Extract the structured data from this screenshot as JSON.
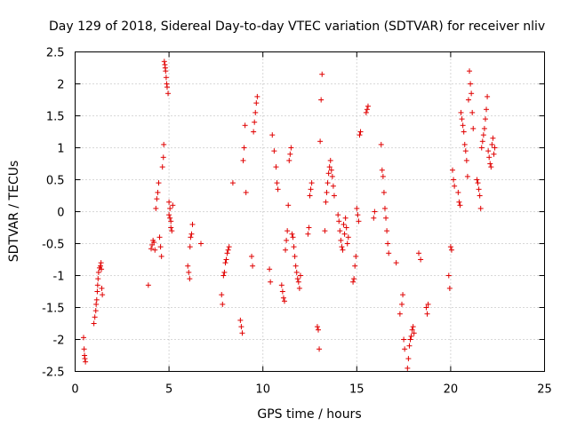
{
  "chart_data": {
    "type": "scatter",
    "title": "Day 129 of 2018, Sidereal Day-to-day VTEC variation (SDTVAR) for receiver nliv",
    "xlabel": "GPS time / hours",
    "ylabel": "SDTVAR / TECUs",
    "xlim": [
      0,
      25
    ],
    "ylim": [
      -2.5,
      2.5
    ],
    "xticks": [
      0,
      5,
      10,
      15,
      20,
      25
    ],
    "yticks": [
      -2.5,
      -2,
      -1.5,
      -1,
      -0.5,
      0,
      0.5,
      1,
      1.5,
      2,
      2.5
    ],
    "xtick_labels": [
      "0",
      "5",
      "10",
      "15",
      "20",
      "25"
    ],
    "ytick_labels": [
      "-2.5",
      "-2",
      "-1.5",
      "-1",
      "-0.5",
      "0",
      "0.5",
      "1",
      "1.5",
      "2",
      "2.5"
    ],
    "grid": true,
    "marker": "+",
    "series_color": "#e00000",
    "series": [
      {
        "name": "SDTVAR",
        "x": [
          0.45,
          0.48,
          0.5,
          0.52,
          0.55,
          1.0,
          1.05,
          1.1,
          1.12,
          1.15,
          1.18,
          1.2,
          1.22,
          1.25,
          1.3,
          1.35,
          1.38,
          1.4,
          1.42,
          1.45,
          3.9,
          4.05,
          4.1,
          4.15,
          4.2,
          4.25,
          4.3,
          4.35,
          4.4,
          4.45,
          4.5,
          4.55,
          4.6,
          4.65,
          4.7,
          4.72,
          4.75,
          4.78,
          4.8,
          4.82,
          4.85,
          4.88,
          4.9,
          4.95,
          5.0,
          5.05,
          5.1,
          5.0,
          5.05,
          5.1,
          5.15,
          5.2,
          6.0,
          6.05,
          6.1,
          6.12,
          6.15,
          6.2,
          6.25,
          6.7,
          7.8,
          7.85,
          7.9,
          7.95,
          8.0,
          8.05,
          8.1,
          8.15,
          8.2,
          8.4,
          8.8,
          8.85,
          8.9,
          8.95,
          9.0,
          9.05,
          9.1,
          9.4,
          9.45,
          9.5,
          9.55,
          9.6,
          9.65,
          9.7,
          10.35,
          10.4,
          10.5,
          10.6,
          10.7,
          10.75,
          10.8,
          11.0,
          11.05,
          11.1,
          11.15,
          11.2,
          11.25,
          11.3,
          11.35,
          11.4,
          11.45,
          11.5,
          11.55,
          11.6,
          11.65,
          11.7,
          11.75,
          11.8,
          11.85,
          11.9,
          11.95,
          12.0,
          12.4,
          12.45,
          12.5,
          12.55,
          12.6,
          12.9,
          12.95,
          13.0,
          13.05,
          13.1,
          13.15,
          13.3,
          13.35,
          13.4,
          13.45,
          13.5,
          13.55,
          13.6,
          13.65,
          13.7,
          13.75,
          13.8,
          14.0,
          14.05,
          14.1,
          14.15,
          14.2,
          14.25,
          14.3,
          14.35,
          14.4,
          14.45,
          14.5,
          14.55,
          14.8,
          14.85,
          14.9,
          14.95,
          15.0,
          15.05,
          15.1,
          15.15,
          15.2,
          15.5,
          15.55,
          15.6,
          15.9,
          15.95,
          16.3,
          16.35,
          16.4,
          16.45,
          16.5,
          16.55,
          16.6,
          16.65,
          16.7,
          17.1,
          17.3,
          17.4,
          17.45,
          17.5,
          17.55,
          17.7,
          17.75,
          17.8,
          17.85,
          17.9,
          17.95,
          18.0,
          18.05,
          18.3,
          18.4,
          18.7,
          18.75,
          18.8,
          19.9,
          19.95,
          20.0,
          20.05,
          20.1,
          20.15,
          20.2,
          20.4,
          20.45,
          20.5,
          20.55,
          20.6,
          20.65,
          20.7,
          20.75,
          20.8,
          20.85,
          20.9,
          20.95,
          21.0,
          21.05,
          21.1,
          21.15,
          21.2,
          21.4,
          21.45,
          21.5,
          21.55,
          21.6,
          21.65,
          21.7,
          21.75,
          21.8,
          21.85,
          21.9,
          21.95,
          22.0,
          22.05,
          22.1,
          22.15,
          22.2,
          22.25,
          22.3,
          22.35
        ],
        "y": [
          -1.97,
          -2.15,
          -2.25,
          -2.3,
          -2.35,
          -1.75,
          -1.65,
          -1.55,
          -1.45,
          -1.38,
          -1.25,
          -1.15,
          -1.05,
          -0.95,
          -0.88,
          -0.85,
          -0.8,
          -0.9,
          -1.2,
          -1.3,
          -1.15,
          -0.58,
          -0.52,
          -0.45,
          -0.48,
          -0.6,
          0.05,
          0.2,
          0.3,
          0.45,
          -0.4,
          -0.55,
          -0.7,
          0.7,
          0.85,
          1.05,
          2.35,
          2.3,
          2.25,
          2.2,
          2.1,
          2.0,
          1.95,
          1.85,
          0.15,
          0.05,
          -0.15,
          -0.05,
          -0.1,
          -0.25,
          -0.3,
          0.1,
          -0.85,
          -0.95,
          -1.05,
          -0.55,
          -0.4,
          -0.35,
          -0.2,
          -0.5,
          -1.3,
          -1.45,
          -1.0,
          -0.95,
          -0.8,
          -0.75,
          -0.65,
          -0.6,
          -0.55,
          0.45,
          -1.7,
          -1.8,
          -1.9,
          0.8,
          1.0,
          1.35,
          0.3,
          -0.7,
          -0.85,
          1.25,
          1.4,
          1.55,
          1.7,
          1.8,
          -0.9,
          -1.1,
          1.2,
          0.95,
          0.7,
          0.45,
          0.35,
          -1.15,
          -1.25,
          -1.35,
          -1.4,
          -0.6,
          -0.45,
          -0.3,
          0.1,
          0.8,
          0.9,
          1.0,
          -0.35,
          -0.4,
          -0.55,
          -0.7,
          -0.85,
          -0.95,
          -1.05,
          -1.1,
          -1.2,
          -1.0,
          -0.35,
          -0.25,
          0.25,
          0.35,
          0.45,
          -1.8,
          -1.85,
          -2.15,
          1.1,
          1.75,
          2.15,
          -0.3,
          0.15,
          0.3,
          0.45,
          0.6,
          0.7,
          0.8,
          0.65,
          0.55,
          0.4,
          0.25,
          -0.05,
          -0.15,
          -0.3,
          -0.45,
          -0.55,
          -0.6,
          -0.2,
          -0.35,
          -0.1,
          -0.25,
          -0.5,
          -0.4,
          -1.1,
          -1.05,
          -0.85,
          -0.7,
          0.05,
          -0.05,
          -0.15,
          1.2,
          1.25,
          1.55,
          1.6,
          1.65,
          -0.1,
          0.0,
          1.05,
          0.65,
          0.55,
          0.3,
          0.05,
          -0.1,
          -0.3,
          -0.5,
          -0.65,
          -0.8,
          -1.6,
          -1.45,
          -1.3,
          -2.0,
          -2.15,
          -2.45,
          -2.3,
          -2.1,
          -2.0,
          -1.95,
          -1.85,
          -1.8,
          -1.9,
          -0.65,
          -0.75,
          -1.5,
          -1.6,
          -1.45,
          -1.0,
          -1.2,
          -0.55,
          -0.6,
          0.65,
          0.5,
          0.4,
          0.3,
          0.15,
          0.1,
          1.55,
          1.45,
          1.35,
          1.25,
          1.05,
          0.95,
          0.8,
          0.55,
          1.75,
          2.2,
          2.0,
          1.85,
          1.55,
          1.3,
          0.5,
          0.45,
          0.35,
          0.25,
          0.05,
          1.0,
          1.1,
          1.2,
          1.3,
          1.45,
          1.6,
          1.8,
          0.95,
          0.85,
          0.75,
          0.7,
          1.05,
          1.15,
          0.9,
          1.0
        ],
        "color": "#e00000"
      }
    ]
  }
}
